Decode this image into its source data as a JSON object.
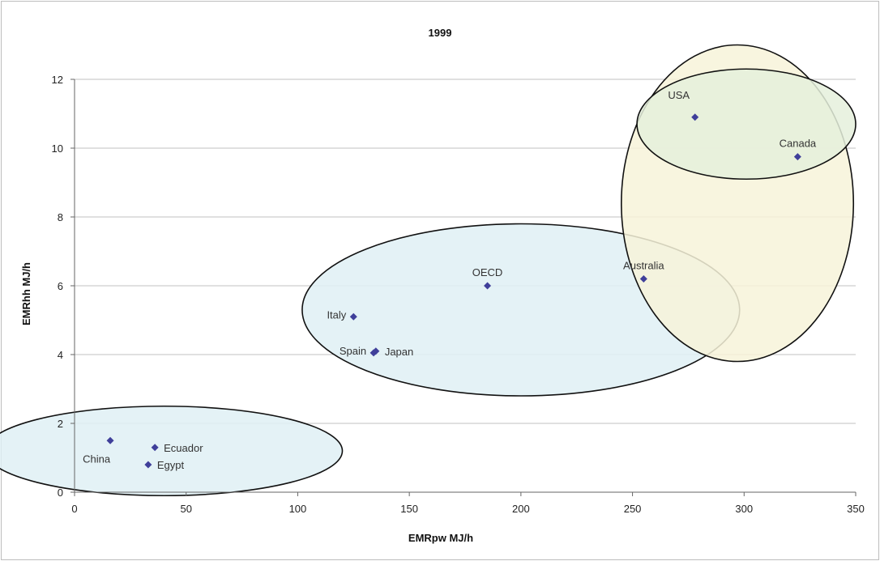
{
  "chart_data": {
    "type": "scatter",
    "title": "1999",
    "xlabel": "EMRpw MJ/h",
    "ylabel": "EMRhh MJ/h",
    "xlim": [
      0,
      350
    ],
    "ylim": [
      0,
      12
    ],
    "xticks": [
      0,
      50,
      100,
      150,
      200,
      250,
      300,
      350
    ],
    "yticks": [
      0,
      2,
      4,
      6,
      8,
      10,
      12
    ],
    "grid": "horizontal",
    "legend": "none",
    "points": [
      {
        "label": "China",
        "x": 16,
        "y": 1.5,
        "label_pos": "below-left"
      },
      {
        "label": "Ecuador",
        "x": 36,
        "y": 1.3,
        "label_pos": "right"
      },
      {
        "label": "Egypt",
        "x": 33,
        "y": 0.8,
        "label_pos": "right"
      },
      {
        "label": "Italy",
        "x": 125,
        "y": 5.1,
        "label_pos": "left"
      },
      {
        "label": "Spain",
        "x": 134,
        "y": 4.05,
        "label_pos": "left"
      },
      {
        "label": "Japan",
        "x": 135,
        "y": 4.1,
        "label_pos": "right"
      },
      {
        "label": "OECD",
        "x": 185,
        "y": 6.0,
        "label_pos": "above"
      },
      {
        "label": "Australia",
        "x": 255,
        "y": 6.2,
        "label_pos": "above"
      },
      {
        "label": "USA",
        "x": 278,
        "y": 10.9,
        "label_pos": "above-left"
      },
      {
        "label": "Canada",
        "x": 324,
        "y": 9.75,
        "label_pos": "above"
      }
    ],
    "groups": [
      {
        "cx": 40,
        "cy": 1.2,
        "rx": 80,
        "ry": 1.3,
        "fill": "#dff0f5"
      },
      {
        "cx": 200,
        "cy": 5.3,
        "rx": 98,
        "ry": 2.5,
        "fill": "#dff0f5"
      },
      {
        "cx": 297,
        "cy": 8.4,
        "rx": 52,
        "ry": 4.6,
        "fill": "#f7f3d9"
      },
      {
        "cx": 301,
        "cy": 10.7,
        "rx": 49,
        "ry": 1.6,
        "fill": "#e5f0dc"
      }
    ],
    "colors": {
      "marker": "#3f3f9a",
      "grid": "#c0c0c0",
      "ellipse_stroke": "#111111"
    }
  }
}
